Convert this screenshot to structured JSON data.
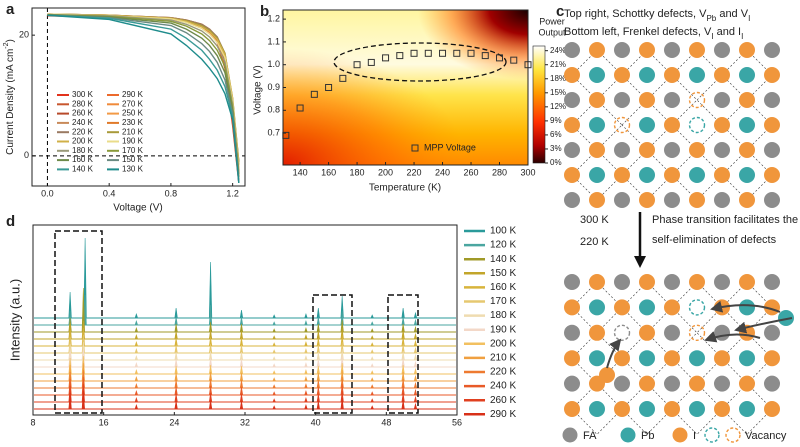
{
  "chart_data": [
    {
      "label": "a",
      "type": "line",
      "x_label": "Voltage (V)",
      "y_label": [
        "Current Density (mA cm",
        "-2",
        ")"
      ],
      "x": [
        0,
        0.4,
        0.8,
        0.9,
        1.0,
        1.05,
        1.1,
        1.15,
        1.2,
        1.24
      ],
      "xlim": [
        -0.1,
        1.28
      ],
      "xticks": [
        {
          "value": 0,
          "label": "0.0"
        },
        0.4,
        0.8,
        1.2
      ],
      "ylim": [
        -5,
        24.5
      ],
      "yticks": [
        0,
        20
      ],
      "series": [
        {
          "name": "300 K",
          "color": "#e2321c",
          "values": [
            23.2,
            23.0,
            22.6,
            22.2,
            21.4,
            20.5,
            18.8,
            14.5,
            5.0,
            -4.5
          ]
        },
        {
          "name": "290 K",
          "color": "#ec6a2c",
          "values": [
            23.3,
            23.1,
            22.7,
            22.3,
            21.5,
            20.6,
            19.0,
            15.0,
            5.5,
            -4.0
          ]
        },
        {
          "name": "280 K",
          "color": "#c8562e",
          "values": [
            23.3,
            23.1,
            22.7,
            22.3,
            21.6,
            20.7,
            19.2,
            15.5,
            6.0,
            -3.5
          ]
        },
        {
          "name": "270 K",
          "color": "#f08a3a",
          "values": [
            23.4,
            23.2,
            22.8,
            22.4,
            21.7,
            20.8,
            19.3,
            15.8,
            6.5,
            -3.0
          ]
        },
        {
          "name": "260 K",
          "color": "#b84a2a",
          "values": [
            23.4,
            23.2,
            22.8,
            22.4,
            21.7,
            20.8,
            19.4,
            16.0,
            7.0,
            -3.0
          ]
        },
        {
          "name": "250 K",
          "color": "#f29a46",
          "values": [
            23.4,
            23.2,
            22.8,
            22.4,
            21.8,
            20.9,
            19.5,
            16.2,
            7.5,
            -2.5
          ]
        },
        {
          "name": "240 K",
          "color": "#c88a5a",
          "values": [
            23.5,
            23.3,
            22.9,
            22.5,
            21.8,
            21.0,
            19.6,
            16.5,
            8.0,
            -2.0
          ]
        },
        {
          "name": "230 K",
          "color": "#e07a2a",
          "values": [
            23.5,
            23.3,
            22.9,
            22.5,
            21.8,
            21.0,
            19.6,
            16.8,
            8.5,
            -1.5
          ]
        },
        {
          "name": "220 K",
          "color": "#9a7a62",
          "values": [
            23.5,
            23.3,
            22.9,
            22.5,
            21.8,
            21.0,
            19.7,
            17.0,
            9.0,
            -1.0
          ]
        },
        {
          "name": "210 K",
          "color": "#a89a3a",
          "values": [
            23.5,
            23.3,
            22.8,
            22.4,
            21.6,
            20.8,
            19.5,
            17.0,
            9.5,
            -1.0
          ]
        },
        {
          "name": "200 K",
          "color": "#d0b048",
          "values": [
            23.5,
            23.3,
            22.8,
            22.3,
            21.4,
            20.6,
            19.3,
            16.8,
            9.5,
            -1.5
          ]
        },
        {
          "name": "190 K",
          "color": "#eadc8a",
          "values": [
            23.5,
            23.2,
            22.7,
            22.1,
            21.1,
            20.2,
            18.8,
            16.3,
            9.0,
            -2.0
          ]
        },
        {
          "name": "180 K",
          "color": "#9a9a7a",
          "values": [
            23.4,
            23.2,
            22.5,
            21.8,
            20.7,
            19.7,
            18.2,
            15.6,
            8.5,
            -2.5
          ]
        },
        {
          "name": "170 K",
          "color": "#8a9a3a",
          "values": [
            23.4,
            23.1,
            22.3,
            21.5,
            20.2,
            19.1,
            17.5,
            14.8,
            8.0,
            -3.0
          ]
        },
        {
          "name": "160 K",
          "color": "#6e8a4a",
          "values": [
            23.4,
            23.0,
            22.0,
            21.0,
            19.5,
            18.3,
            16.6,
            13.8,
            7.5,
            -3.5
          ]
        },
        {
          "name": "150 K",
          "color": "#6a8a82",
          "values": [
            23.3,
            22.9,
            21.6,
            20.4,
            18.6,
            17.3,
            15.5,
            12.6,
            7.0,
            -4.0
          ]
        },
        {
          "name": "140 K",
          "color": "#3a9a96",
          "values": [
            23.3,
            22.8,
            21.0,
            19.5,
            17.5,
            16.0,
            14.2,
            11.5,
            6.5,
            -4.5
          ]
        },
        {
          "name": "130 K",
          "color": "#1f8c8c",
          "values": [
            23.3,
            22.6,
            20.2,
            18.3,
            16.0,
            14.5,
            12.8,
            10.3,
            6.0,
            -4.5
          ]
        }
      ]
    },
    {
      "label": "b",
      "type": "scatter",
      "x_label": "Temperature (K)",
      "y_label": "Voltage (V)",
      "x": [
        130,
        140,
        150,
        160,
        170,
        180,
        190,
        200,
        210,
        220,
        230,
        240,
        250,
        260,
        270,
        280,
        290,
        300
      ],
      "xlim": [
        128,
        300
      ],
      "xticks": [
        140,
        160,
        180,
        200,
        220,
        240,
        260,
        280,
        300
      ],
      "ylim": [
        0.56,
        1.24
      ],
      "yticks": [
        0.7,
        0.8,
        0.9,
        {
          "value": 1,
          "label": "1.0"
        },
        1.1,
        1.2
      ],
      "series": [
        {
          "name": "MPP Voltage",
          "color": "#333333",
          "values": [
            0.69,
            0.81,
            0.87,
            0.9,
            0.94,
            1.0,
            1.01,
            1.03,
            1.04,
            1.05,
            1.05,
            1.05,
            1.05,
            1.05,
            1.04,
            1.03,
            1.02,
            1.0
          ]
        }
      ],
      "colorbar": {
        "title": [
          "Power",
          "Output"
        ],
        "lim": [
          0,
          25
        ],
        "ticks": [
          {
            "value": 0,
            "label": "0%"
          },
          {
            "value": 3,
            "label": "3%"
          },
          {
            "value": 6,
            "label": "6%"
          },
          {
            "value": 9,
            "label": "9%"
          },
          {
            "value": 12,
            "label": "12%"
          },
          {
            "value": 15,
            "label": "15%"
          },
          {
            "value": 18,
            "label": "18%"
          },
          {
            "value": 21,
            "label": "21%"
          },
          {
            "value": 24,
            "label": "24%"
          }
        ]
      }
    },
    {
      "label": "d",
      "type": "stick",
      "y_label": "Intensity (a.u.)",
      "x": [
        12.2,
        13.7,
        13.9,
        19.7,
        24.2,
        28.1,
        31.6,
        35.3,
        38.9,
        40.3,
        43.0,
        46.4,
        49.9,
        51.3
      ],
      "xlim": [
        8,
        56
      ],
      "xticks": [
        8,
        16,
        24,
        32,
        40,
        48,
        56
      ],
      "series": [
        {
          "name": "100 K",
          "color": "#2a9a9a",
          "values": [
            26,
            0,
            80,
            4,
            10,
            56,
            8,
            3,
            4,
            10,
            22,
            3,
            10,
            5
          ]
        },
        {
          "name": "120 K",
          "color": "#4aa6a0",
          "values": [
            14,
            0,
            30,
            4,
            8,
            20,
            8,
            3,
            4,
            8,
            14,
            3,
            8,
            5
          ]
        },
        {
          "name": "140 K",
          "color": "#a09a28",
          "values": [
            14,
            44,
            0,
            4,
            8,
            10,
            8,
            3,
            4,
            8,
            12,
            3,
            8,
            5
          ]
        },
        {
          "name": "150 K",
          "color": "#c2a52a",
          "values": [
            16,
            18,
            0,
            4,
            8,
            9,
            8,
            3,
            4,
            8,
            11,
            3,
            9,
            5
          ]
        },
        {
          "name": "160 K",
          "color": "#d8b43c",
          "values": [
            16,
            18,
            0,
            4,
            8,
            9,
            8,
            3,
            4,
            8,
            11,
            3,
            9,
            5
          ]
        },
        {
          "name": "170 K",
          "color": "#e6c870",
          "values": [
            16,
            18,
            0,
            4,
            8,
            9,
            8,
            3,
            4,
            8,
            11,
            3,
            9,
            5
          ]
        },
        {
          "name": "180 K",
          "color": "#efdcb0",
          "values": [
            16,
            18,
            0,
            4,
            8,
            9,
            8,
            3,
            4,
            8,
            11,
            3,
            9,
            5
          ]
        },
        {
          "name": "190 K",
          "color": "#f3d8c8",
          "values": [
            16,
            18,
            0,
            4,
            8,
            9,
            8,
            3,
            4,
            8,
            11,
            3,
            9,
            5
          ]
        },
        {
          "name": "200 K",
          "color": "#f2c060",
          "values": [
            16,
            18,
            0,
            4,
            8,
            9,
            8,
            3,
            4,
            8,
            11,
            3,
            9,
            5
          ]
        },
        {
          "name": "210 K",
          "color": "#f0a040",
          "values": [
            16,
            18,
            0,
            4,
            8,
            9,
            8,
            3,
            4,
            8,
            11,
            3,
            9,
            5
          ]
        },
        {
          "name": "220 K",
          "color": "#ee7a30",
          "values": [
            16,
            18,
            0,
            4,
            8,
            9,
            8,
            3,
            4,
            8,
            11,
            3,
            9,
            5
          ]
        },
        {
          "name": "240 K",
          "color": "#e85a28",
          "values": [
            16,
            18,
            0,
            4,
            8,
            9,
            8,
            3,
            4,
            8,
            11,
            3,
            9,
            5
          ]
        },
        {
          "name": "260 K",
          "color": "#e04020",
          "values": [
            16,
            18,
            0,
            4,
            8,
            9,
            8,
            3,
            4,
            8,
            11,
            3,
            9,
            5
          ]
        },
        {
          "name": "290 K",
          "color": "#d83018",
          "values": [
            16,
            18,
            0,
            4,
            8,
            9,
            8,
            3,
            4,
            8,
            11,
            3,
            9,
            5
          ]
        }
      ]
    }
  ],
  "diagram": {
    "label": "c",
    "top_caption": [
      "Top right, Schottky defects, V",
      "Pb",
      " and V",
      "I"
    ],
    "bottom_caption": [
      "Bottom left, Frenkel defects, V",
      "I",
      " and I",
      "I"
    ],
    "temperatures": [
      "300 K",
      "220 K"
    ],
    "transition_text": [
      "Phase transition facilitates the",
      "self-elimination of defects"
    ],
    "legend": [
      {
        "label": "FA",
        "color": "#8c8c8c"
      },
      {
        "label": "Pb",
        "color": "#3aa6a6"
      },
      {
        "label": "I",
        "color": "#f0963c"
      },
      {
        "label": "Vacancy"
      }
    ]
  }
}
